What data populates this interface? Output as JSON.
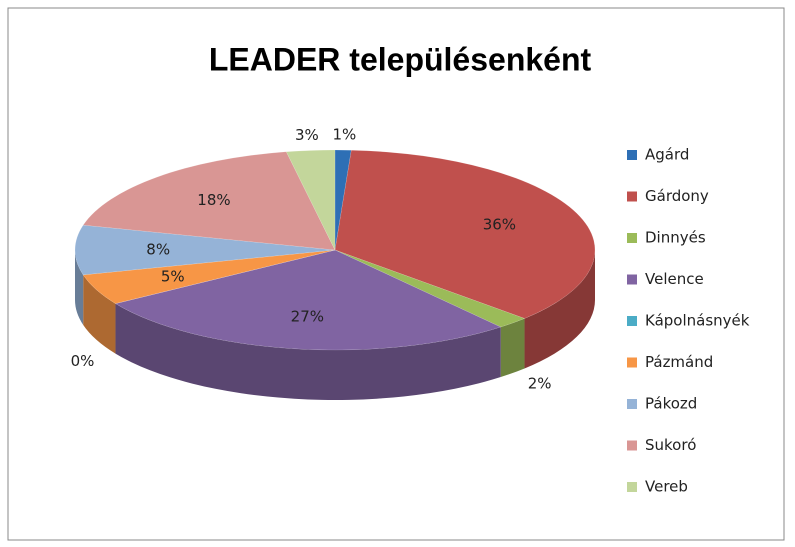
{
  "chart_data": {
    "type": "pie3d",
    "title": "LEADER településenként",
    "categories": [
      "Agárd",
      "Gárdony",
      "Dinnyés",
      "Velence",
      "Kápolnásnyék",
      "Pázmánd",
      "Pákozd",
      "Sukoró",
      "Vereb"
    ],
    "values": [
      1,
      36,
      2,
      27,
      0,
      5,
      8,
      18,
      3
    ],
    "value_labels": [
      "1%",
      "36%",
      "2%",
      "27%",
      "0%",
      "5%",
      "8%",
      "18%",
      "3%"
    ],
    "colors": [
      "#2e6fb5",
      "#c0504d",
      "#9bbb59",
      "#8064a2",
      "#4bacc6",
      "#f79646",
      "#95b3d7",
      "#d99694",
      "#c3d69b"
    ]
  }
}
